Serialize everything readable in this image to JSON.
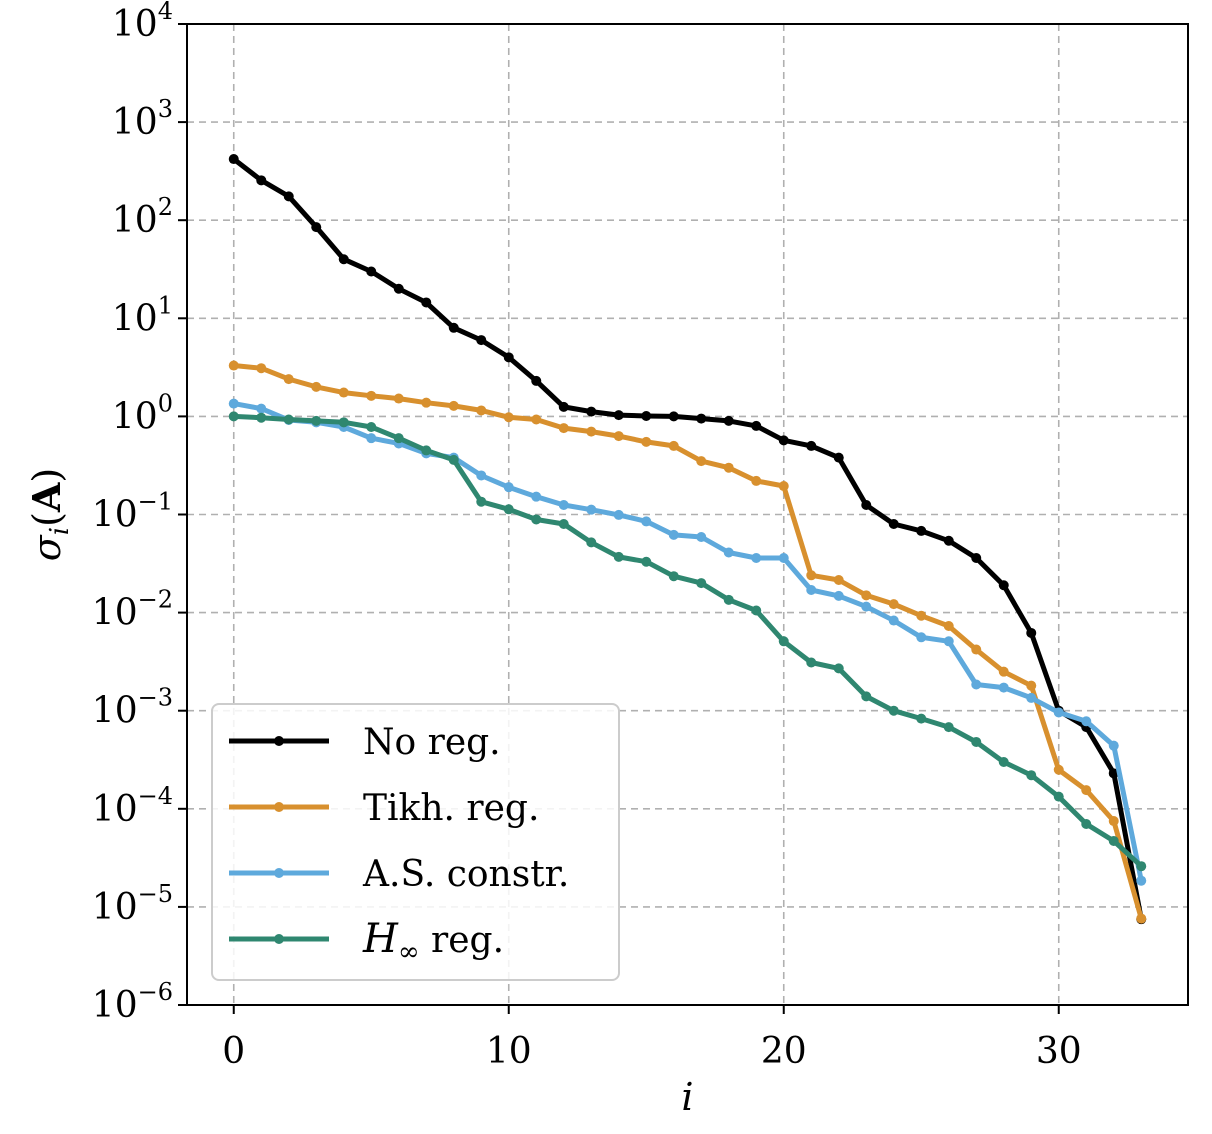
{
  "chart_data": {
    "type": "line",
    "xlabel": "i",
    "ylabel": "σ_i(A)",
    "yscale": "log",
    "xlim": [
      -1.7,
      34.7
    ],
    "ylim": [
      1e-06,
      10000.0
    ],
    "grid": true,
    "legend_position": "lower-left",
    "x_ticks": [
      "0",
      "10",
      "20",
      "30"
    ],
    "x_tick_values": [
      0,
      10,
      20,
      30
    ],
    "y_ticks": [
      {
        "value": 10000.0,
        "base": "10",
        "exp": "4"
      },
      {
        "value": 1000.0,
        "base": "10",
        "exp": "3"
      },
      {
        "value": 100.0,
        "base": "10",
        "exp": "2"
      },
      {
        "value": 10.0,
        "base": "10",
        "exp": "1"
      },
      {
        "value": 1.0,
        "base": "10",
        "exp": "0"
      },
      {
        "value": 0.1,
        "base": "10",
        "exp": "−1"
      },
      {
        "value": 0.01,
        "base": "10",
        "exp": "−2"
      },
      {
        "value": 0.001,
        "base": "10",
        "exp": "−3"
      },
      {
        "value": 0.0001,
        "base": "10",
        "exp": "−4"
      },
      {
        "value": 1e-05,
        "base": "10",
        "exp": "−5"
      },
      {
        "value": 1e-06,
        "base": "10",
        "exp": "−6"
      }
    ],
    "x": [
      0,
      1,
      2,
      3,
      4,
      5,
      6,
      7,
      8,
      9,
      10,
      11,
      12,
      13,
      14,
      15,
      16,
      17,
      18,
      19,
      20,
      21,
      22,
      23,
      24,
      25,
      26,
      27,
      28,
      29,
      30,
      31,
      32,
      33
    ],
    "series": [
      {
        "name": "No reg.",
        "color": "#000000",
        "values": [
          420,
          255,
          175,
          85,
          40,
          30,
          20,
          14.5,
          8,
          6,
          4,
          2.3,
          1.25,
          1.12,
          1.03,
          1.01,
          1.0,
          0.95,
          0.9,
          0.8,
          0.57,
          0.5,
          0.38,
          0.125,
          0.08,
          0.068,
          0.054,
          0.036,
          0.019,
          0.0062,
          0.001,
          0.00068,
          0.00023,
          7.5e-06
        ]
      },
      {
        "name": "Tikh. reg.",
        "color": "#d8902e",
        "values": [
          3.3,
          3.1,
          2.4,
          2.0,
          1.75,
          1.62,
          1.52,
          1.38,
          1.28,
          1.15,
          0.98,
          0.93,
          0.76,
          0.7,
          0.63,
          0.55,
          0.5,
          0.35,
          0.3,
          0.22,
          0.195,
          0.024,
          0.0215,
          0.015,
          0.0122,
          0.0093,
          0.0073,
          0.0042,
          0.0025,
          0.0018,
          0.00025,
          0.000155,
          7.5e-05,
          7.6e-06
        ]
      },
      {
        "name": "A.S. constr.",
        "color": "#5ea9dc",
        "values": [
          1.35,
          1.2,
          0.92,
          0.87,
          0.78,
          0.6,
          0.53,
          0.42,
          0.38,
          0.25,
          0.19,
          0.152,
          0.125,
          0.112,
          0.099,
          0.085,
          0.062,
          0.059,
          0.041,
          0.036,
          0.036,
          0.017,
          0.0148,
          0.0115,
          0.0083,
          0.0056,
          0.0051,
          0.00185,
          0.00172,
          0.00135,
          0.00096,
          0.00078,
          0.00044,
          1.85e-05
        ]
      },
      {
        "name": "H∞ reg.",
        "color": "#2f8770",
        "values": [
          1.0,
          0.97,
          0.93,
          0.9,
          0.87,
          0.78,
          0.6,
          0.45,
          0.36,
          0.135,
          0.113,
          0.089,
          0.08,
          0.052,
          0.037,
          0.033,
          0.0235,
          0.02,
          0.0135,
          0.0105,
          0.0051,
          0.0031,
          0.0027,
          0.0014,
          0.001,
          0.00083,
          0.00068,
          0.00048,
          0.0003,
          0.00022,
          0.000133,
          7e-05,
          4.7e-05,
          2.6e-05
        ]
      }
    ]
  }
}
